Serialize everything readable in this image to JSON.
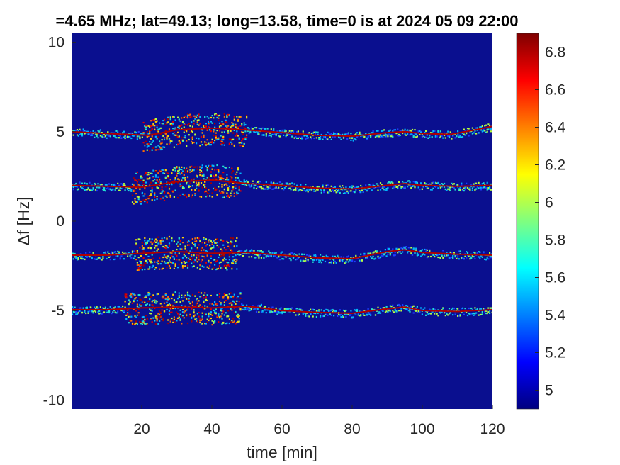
{
  "chart_data": {
    "type": "heatmap",
    "title": "=4.65 MHz;  lat=49.13; long=13.58, time=0 is at 2024 05 09 22:00",
    "xlabel": "time [min]",
    "ylabel": "Δf [Hz]",
    "xlim": [
      0,
      120
    ],
    "ylim": [
      -10.5,
      10.5
    ],
    "xticks": [
      20,
      40,
      60,
      80,
      100,
      120
    ],
    "xtick_labels": [
      "20",
      "40",
      "60",
      "80",
      "100",
      "120"
    ],
    "yticks": [
      10,
      5,
      0,
      -5,
      -10
    ],
    "ytick_labels": [
      "10",
      "5",
      "0",
      "-5",
      "-10"
    ],
    "colormap": "jet",
    "clim": [
      4.9,
      6.9
    ],
    "colorbar_ticks": [
      6.8,
      6.6,
      6.4,
      6.2,
      6,
      5.8,
      5.6,
      5.4,
      5.2,
      5
    ],
    "colorbar_labels": [
      "6.8",
      "6.6",
      "6.4",
      "6.2",
      "6",
      "5.8",
      "5.6",
      "5.4",
      "5.2",
      "5"
    ],
    "background_color": "#0a0f8f",
    "traces": [
      {
        "offset_hz": 5,
        "points": [
          [
            0,
            5.0
          ],
          [
            10,
            4.9
          ],
          [
            22,
            4.8
          ],
          [
            30,
            5.1
          ],
          [
            40,
            5.2
          ],
          [
            50,
            5.1
          ],
          [
            60,
            4.95
          ],
          [
            70,
            4.8
          ],
          [
            80,
            4.75
          ],
          [
            90,
            4.95
          ],
          [
            95,
            5.0
          ],
          [
            100,
            4.9
          ],
          [
            108,
            4.85
          ],
          [
            115,
            5.1
          ],
          [
            120,
            5.3
          ]
        ],
        "disturbed_range": [
          20,
          50
        ]
      },
      {
        "offset_hz": 2,
        "points": [
          [
            0,
            2.0
          ],
          [
            10,
            1.95
          ],
          [
            20,
            1.9
          ],
          [
            30,
            2.2
          ],
          [
            40,
            2.3
          ],
          [
            50,
            2.1
          ],
          [
            60,
            2.0
          ],
          [
            70,
            1.85
          ],
          [
            80,
            1.8
          ],
          [
            90,
            2.0
          ],
          [
            95,
            2.1
          ],
          [
            100,
            2.0
          ],
          [
            110,
            1.95
          ],
          [
            120,
            2.0
          ]
        ],
        "disturbed_range": [
          17,
          48
        ]
      },
      {
        "offset_hz": -2,
        "points": [
          [
            0,
            -1.9
          ],
          [
            10,
            -1.9
          ],
          [
            20,
            -1.8
          ],
          [
            30,
            -1.7
          ],
          [
            40,
            -1.8
          ],
          [
            50,
            -1.75
          ],
          [
            60,
            -1.9
          ],
          [
            70,
            -2.05
          ],
          [
            80,
            -2.1
          ],
          [
            90,
            -1.7
          ],
          [
            95,
            -1.6
          ],
          [
            100,
            -1.75
          ],
          [
            110,
            -1.85
          ],
          [
            120,
            -1.9
          ]
        ],
        "disturbed_range": [
          18,
          47
        ]
      },
      {
        "offset_hz": -5,
        "points": [
          [
            0,
            -4.95
          ],
          [
            10,
            -4.95
          ],
          [
            20,
            -4.85
          ],
          [
            30,
            -4.8
          ],
          [
            40,
            -4.85
          ],
          [
            50,
            -4.75
          ],
          [
            60,
            -5.0
          ],
          [
            70,
            -5.1
          ],
          [
            80,
            -5.15
          ],
          [
            90,
            -4.9
          ],
          [
            95,
            -4.8
          ],
          [
            100,
            -5.0
          ],
          [
            110,
            -5.05
          ],
          [
            120,
            -4.95
          ]
        ],
        "disturbed_range": [
          15,
          48
        ]
      }
    ]
  }
}
